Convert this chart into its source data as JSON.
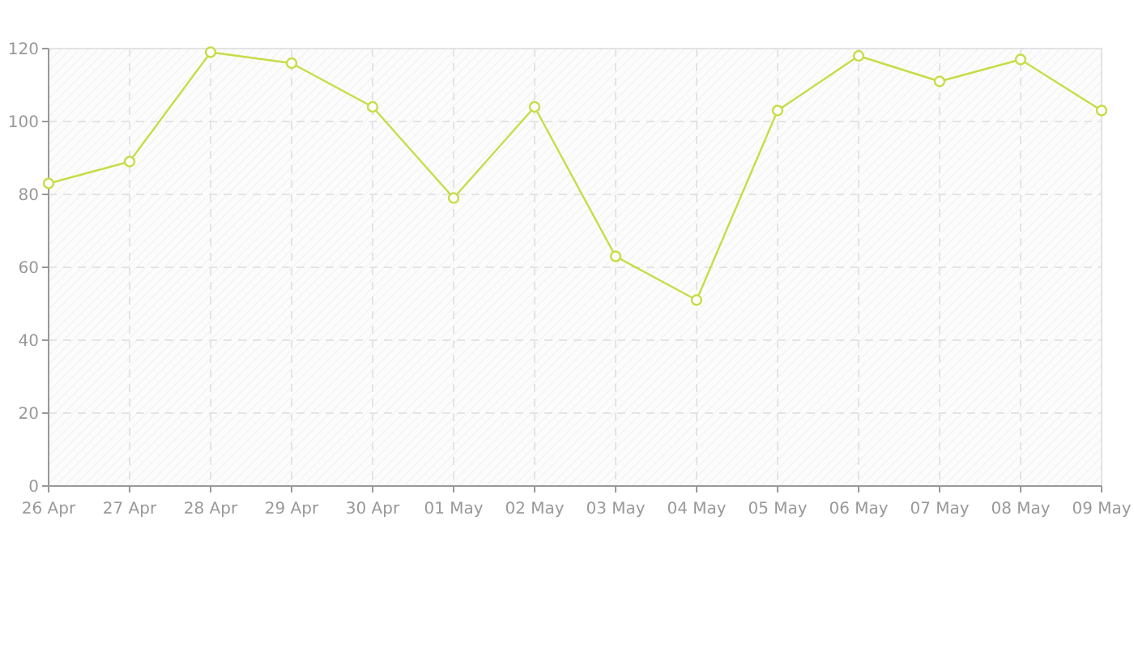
{
  "chart_data": {
    "type": "line",
    "categories": [
      "26 Apr",
      "27 Apr",
      "28 Apr",
      "29 Apr",
      "30 Apr",
      "01 May",
      "02 May",
      "03 May",
      "04 May",
      "05 May",
      "06 May",
      "07 May",
      "08 May",
      "09 May"
    ],
    "series": [
      {
        "color": "#c8dc46",
        "values": [
          83,
          89,
          119,
          116,
          104,
          79,
          104,
          63,
          51,
          103,
          118,
          111,
          117,
          103
        ]
      }
    ],
    "ylim": [
      0,
      120
    ],
    "yticks": [
      0,
      20,
      40,
      60,
      80,
      100,
      120
    ],
    "grid": true,
    "marker": "circle",
    "line_style": "solid"
  }
}
